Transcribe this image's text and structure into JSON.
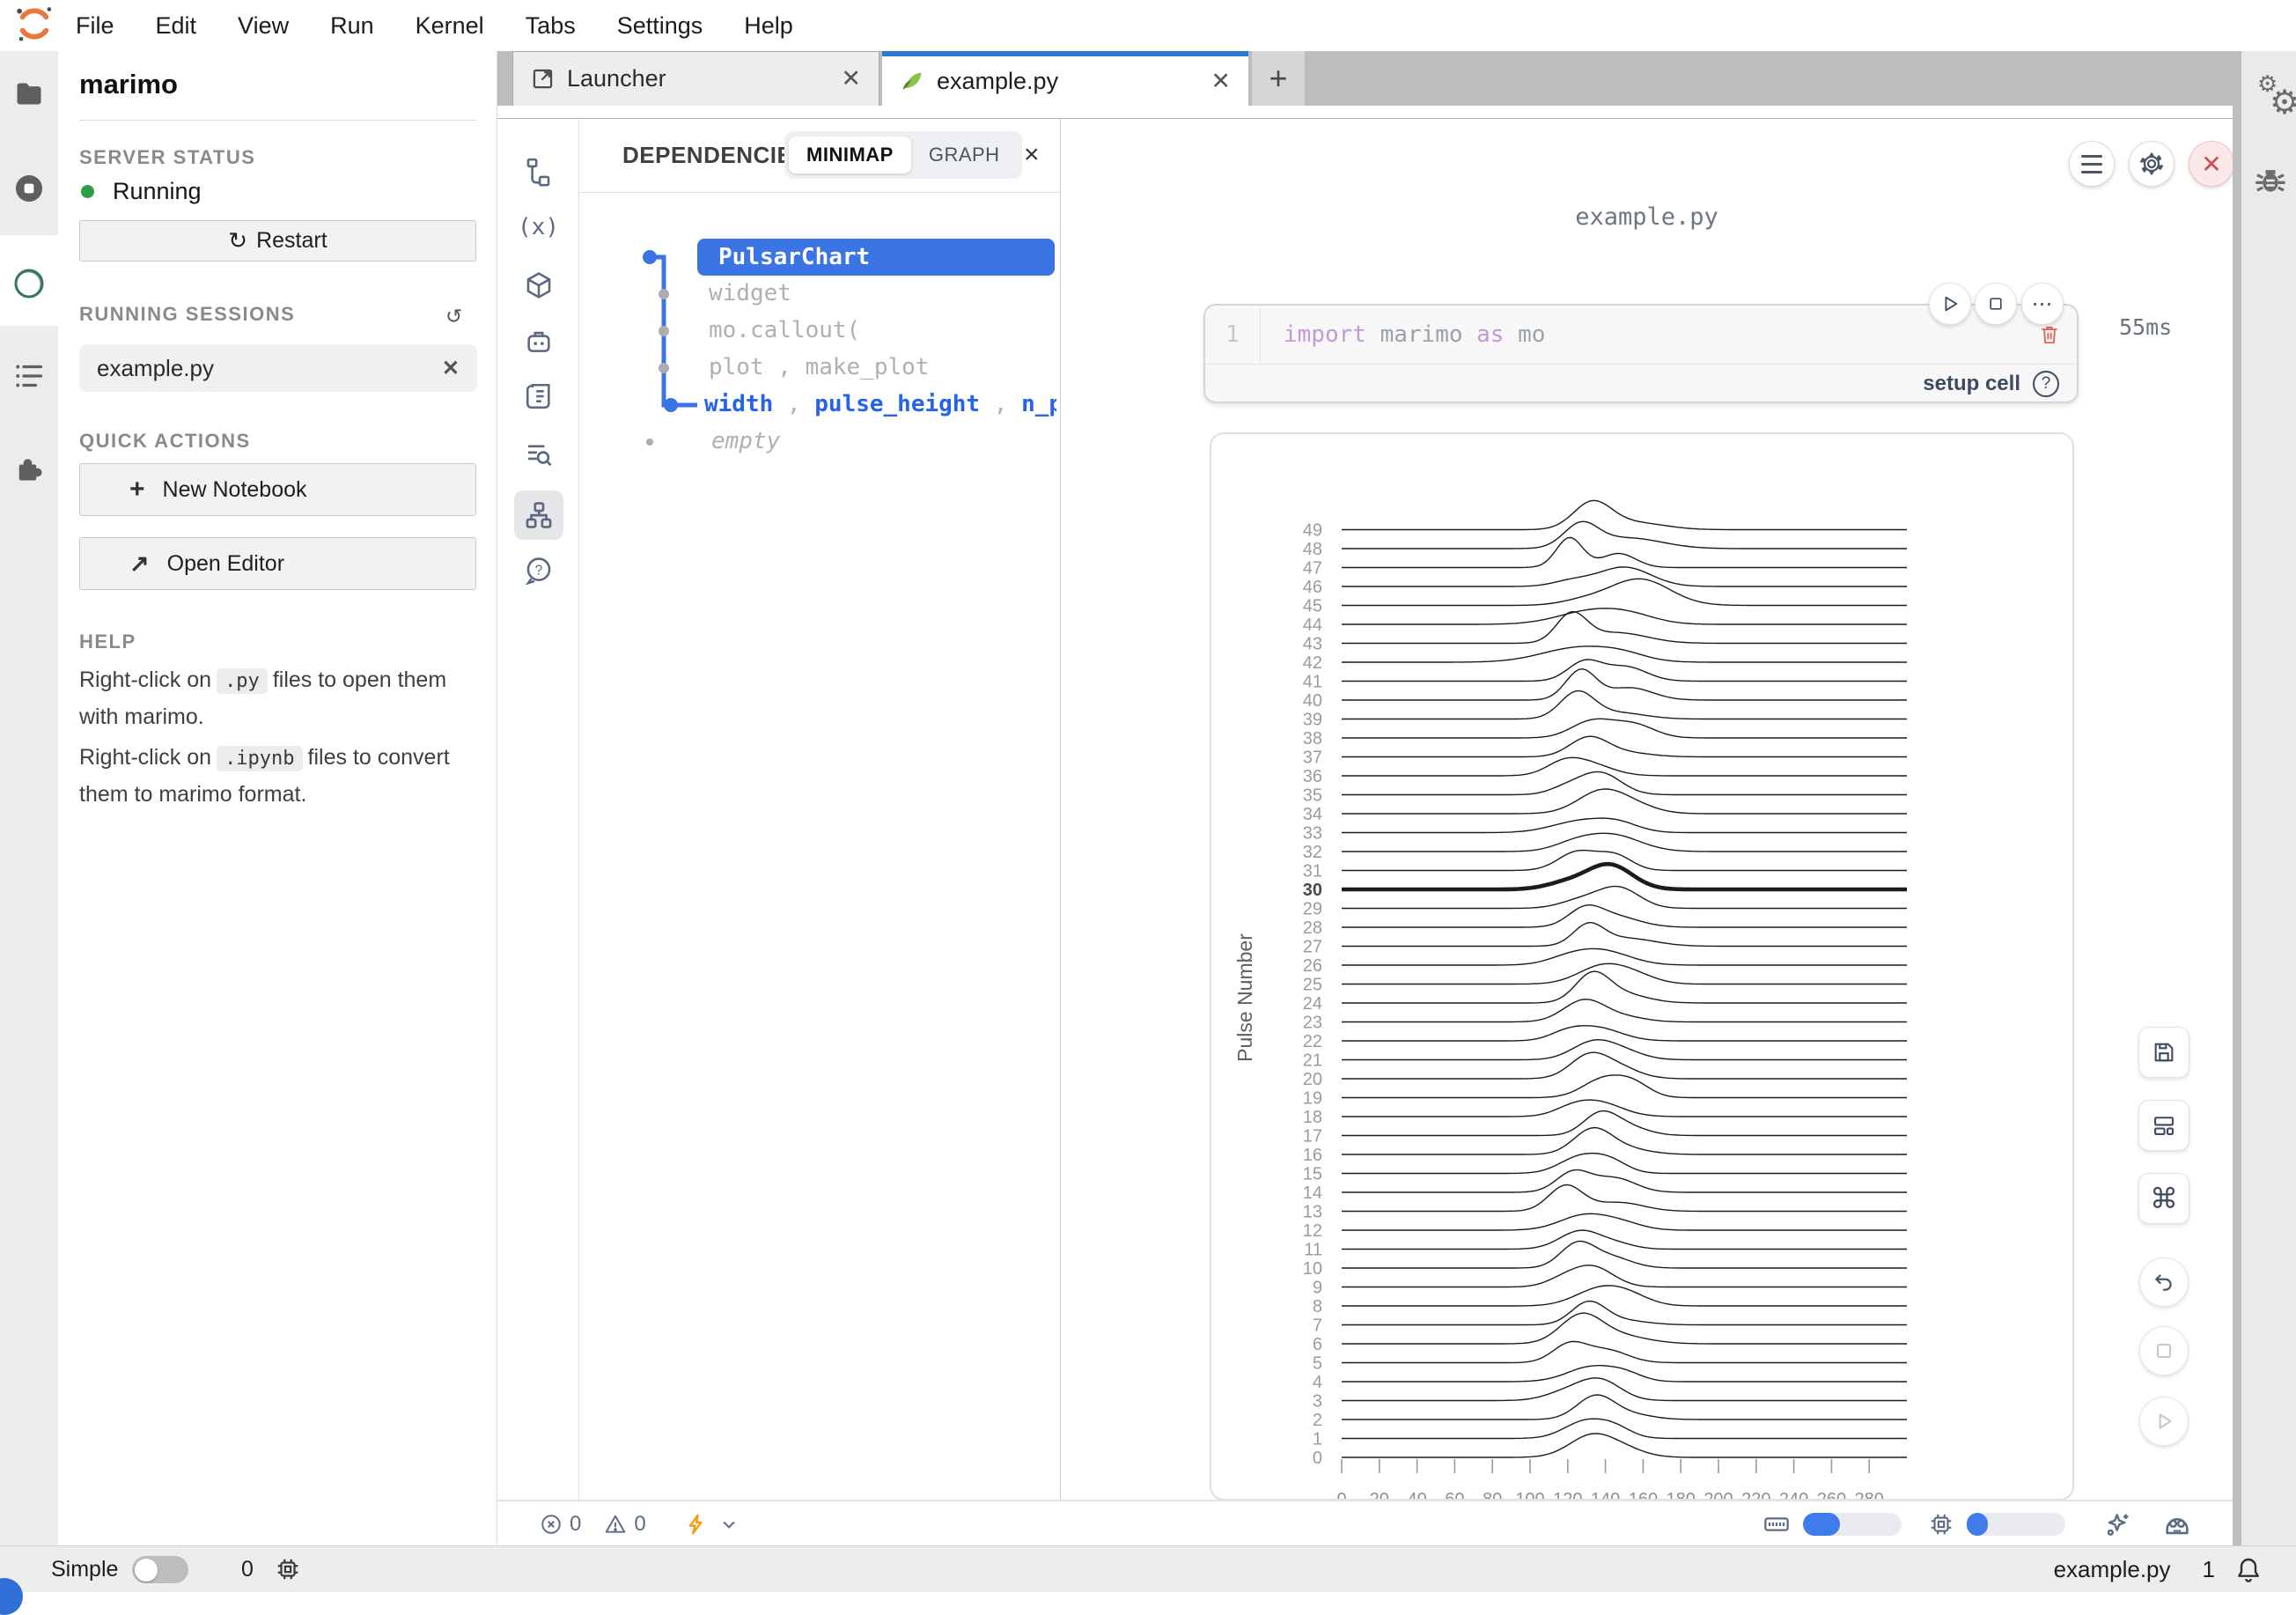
{
  "menu": {
    "items": [
      "File",
      "Edit",
      "View",
      "Run",
      "Kernel",
      "Tabs",
      "Settings",
      "Help"
    ]
  },
  "sidebar": {
    "title": "marimo",
    "server_status_label": "SERVER STATUS",
    "status_text": "Running",
    "restart_label": "Restart",
    "running_sessions_label": "RUNNING SESSIONS",
    "session_name": "example.py",
    "quick_actions_label": "QUICK ACTIONS",
    "new_notebook_label": "New Notebook",
    "open_editor_label": "Open Editor",
    "help_label": "HELP",
    "help1_pre": "Right-click on",
    "help1_code": ".py",
    "help1_post": "files to open them with marimo.",
    "help2_pre": "Right-click on",
    "help2_code": ".ipynb",
    "help2_post": "them to marimo format.",
    "help2_mid": "files to convert"
  },
  "tabbar": {
    "launcher_label": "Launcher",
    "notebook_label": "example.py",
    "new_tab_label": "+"
  },
  "dependencies": {
    "title": "DEPENDENCIES",
    "minimap_label": "MINIMAP",
    "graph_label": "GRAPH",
    "node_selected": "PulsarChart",
    "node_widget": "widget",
    "node_callout": "mo.callout(",
    "node_plot": "plot , make_plot",
    "defs": {
      "w1": "width",
      "w2": "pulse_height",
      "w3": "n_poi",
      "sep": " , "
    },
    "node_empty": "empty"
  },
  "notebook": {
    "title": "example.py",
    "cell": {
      "line_number": "1",
      "tok_import": "import",
      "tok_marimo": " marimo ",
      "tok_as": "as",
      "tok_mo": " mo",
      "runtime": "55ms",
      "setup_label": "setup cell",
      "help_glyph": "?"
    }
  },
  "dock_footer": {
    "errors": "0",
    "warnings": "0"
  },
  "status_bar": {
    "mode_label": "Simple",
    "kernel_count": "0",
    "file_name": "example.py",
    "notification_count": "1"
  },
  "colors": {
    "accent_blue": "#3a75e3",
    "tab_accent": "#2b7bd4",
    "status_green": "#2e9e44",
    "close_red": "#c94f4f",
    "bolt_orange": "#f59e0b"
  },
  "chart_data": {
    "type": "line",
    "variant": "ridgeline",
    "title": "",
    "xlabel": "",
    "ylabel": "Pulse Number",
    "x_range": [
      0,
      300
    ],
    "x_ticks": [
      0,
      20,
      40,
      60,
      80,
      100,
      120,
      140,
      160,
      180,
      200,
      220,
      240,
      260,
      280
    ],
    "y_categories_range": [
      0,
      49
    ],
    "highlight_pulse": 30,
    "grid": false,
    "legend": false,
    "peaks_format": "[amplitude_px, center_x, sigma_x]",
    "pulses": [
      {
        "n": 49,
        "peaks": [
          [
            30,
            133,
            10
          ],
          [
            8,
            155,
            16
          ]
        ]
      },
      {
        "n": 48,
        "peaks": [
          [
            26,
            127,
            9
          ],
          [
            12,
            152,
            18
          ]
        ]
      },
      {
        "n": 47,
        "peaks": [
          [
            34,
            121,
            7
          ],
          [
            16,
            147,
            9
          ]
        ]
      },
      {
        "n": 46,
        "peaks": [
          [
            22,
            150,
            14
          ],
          [
            6,
            122,
            10
          ]
        ]
      },
      {
        "n": 45,
        "peaks": [
          [
            30,
            158,
            16
          ],
          [
            5,
            128,
            12
          ]
        ]
      },
      {
        "n": 44,
        "peaks": [
          [
            15,
            133,
            18
          ],
          [
            7,
            154,
            14
          ]
        ]
      },
      {
        "n": 43,
        "peaks": [
          [
            32,
            122,
            8
          ],
          [
            12,
            146,
            16
          ]
        ]
      },
      {
        "n": 42,
        "peaks": [
          [
            17,
            127,
            20
          ],
          [
            5,
            150,
            12
          ]
        ]
      },
      {
        "n": 41,
        "peaks": [
          [
            22,
            129,
            9
          ],
          [
            16,
            151,
            11
          ]
        ]
      },
      {
        "n": 40,
        "peaks": [
          [
            34,
            127,
            8
          ],
          [
            14,
            153,
            12
          ]
        ]
      },
      {
        "n": 39,
        "peaks": [
          [
            30,
            125,
            9
          ],
          [
            7,
            147,
            14
          ]
        ]
      },
      {
        "n": 38,
        "peaks": [
          [
            19,
            133,
            11
          ],
          [
            15,
            155,
            11
          ]
        ]
      },
      {
        "n": 37,
        "peaks": [
          [
            21,
            131,
            10
          ],
          [
            5,
            149,
            14
          ]
        ]
      },
      {
        "n": 36,
        "peaks": [
          [
            15,
            129,
            13
          ],
          [
            9,
            117,
            9
          ]
        ]
      },
      {
        "n": 35,
        "peaks": [
          [
            25,
            137,
            11
          ],
          [
            7,
            119,
            9
          ]
        ]
      },
      {
        "n": 34,
        "peaks": [
          [
            27,
            139,
            13
          ],
          [
            5,
            159,
            11
          ]
        ]
      },
      {
        "n": 33,
        "peaks": [
          [
            13,
            127,
            15
          ],
          [
            9,
            147,
            11
          ]
        ]
      },
      {
        "n": 32,
        "peaks": [
          [
            19,
            143,
            15
          ],
          [
            7,
            123,
            11
          ]
        ]
      },
      {
        "n": 31,
        "peaks": [
          [
            21,
            125,
            10
          ],
          [
            17,
            145,
            9
          ]
        ]
      },
      {
        "n": 30,
        "peaks": [
          [
            28,
            142,
            12
          ],
          [
            7,
            119,
            11
          ]
        ]
      },
      {
        "n": 29,
        "peaks": [
          [
            23,
            147,
            11
          ],
          [
            9,
            127,
            11
          ]
        ]
      },
      {
        "n": 28,
        "peaks": [
          [
            19,
            129,
            9
          ],
          [
            12,
            145,
            13
          ]
        ]
      },
      {
        "n": 27,
        "peaks": [
          [
            23,
            131,
            8
          ],
          [
            9,
            151,
            15
          ]
        ]
      },
      {
        "n": 26,
        "peaks": [
          [
            17,
            137,
            15
          ],
          [
            5,
            119,
            11
          ]
        ]
      },
      {
        "n": 25,
        "peaks": [
          [
            21,
            139,
            13
          ],
          [
            7,
            157,
            11
          ]
        ]
      },
      {
        "n": 24,
        "peaks": [
          [
            31,
            133,
            9
          ],
          [
            10,
            149,
            13
          ]
        ]
      },
      {
        "n": 23,
        "peaks": [
          [
            25,
            129,
            11
          ],
          [
            5,
            151,
            11
          ]
        ]
      },
      {
        "n": 22,
        "peaks": [
          [
            15,
            135,
            13
          ],
          [
            7,
            119,
            9
          ]
        ]
      },
      {
        "n": 21,
        "peaks": [
          [
            19,
            133,
            11
          ],
          [
            9,
            149,
            11
          ]
        ]
      },
      {
        "n": 20,
        "peaks": [
          [
            25,
            131,
            10
          ],
          [
            12,
            147,
            11
          ]
        ]
      },
      {
        "n": 19,
        "peaks": [
          [
            21,
            139,
            11
          ],
          [
            14,
            155,
            9
          ]
        ]
      },
      {
        "n": 18,
        "peaks": [
          [
            17,
            135,
            13
          ],
          [
            5,
            121,
            9
          ]
        ]
      },
      {
        "n": 17,
        "peaks": [
          [
            23,
            137,
            9
          ],
          [
            10,
            151,
            11
          ]
        ]
      },
      {
        "n": 16,
        "peaks": [
          [
            27,
            133,
            10
          ],
          [
            7,
            149,
            13
          ]
        ]
      },
      {
        "n": 15,
        "peaks": [
          [
            19,
            127,
            11
          ],
          [
            12,
            143,
            9
          ]
        ]
      },
      {
        "n": 14,
        "peaks": [
          [
            23,
            123,
            9
          ],
          [
            16,
            145,
            11
          ]
        ]
      },
      {
        "n": 13,
        "peaks": [
          [
            29,
            119,
            9
          ],
          [
            10,
            147,
            13
          ]
        ]
      },
      {
        "n": 12,
        "peaks": [
          [
            17,
            129,
            13
          ],
          [
            7,
            149,
            11
          ]
        ]
      },
      {
        "n": 11,
        "peaks": [
          [
            21,
            127,
            11
          ],
          [
            5,
            147,
            9
          ]
        ]
      },
      {
        "n": 10,
        "peaks": [
          [
            27,
            125,
            9
          ],
          [
            12,
            143,
            11
          ]
        ]
      },
      {
        "n": 9,
        "peaks": [
          [
            23,
            133,
            11
          ],
          [
            7,
            117,
            9
          ]
        ]
      },
      {
        "n": 8,
        "peaks": [
          [
            19,
            137,
            13
          ],
          [
            9,
            153,
            11
          ]
        ]
      },
      {
        "n": 7,
        "peaks": [
          [
            25,
            131,
            9
          ],
          [
            5,
            149,
            13
          ]
        ]
      },
      {
        "n": 6,
        "peaks": [
          [
            31,
            127,
            11
          ],
          [
            9,
            147,
            15
          ]
        ]
      },
      {
        "n": 5,
        "peaks": [
          [
            21,
            121,
            9
          ],
          [
            14,
            141,
            11
          ]
        ]
      },
      {
        "n": 4,
        "peaks": [
          [
            17,
            133,
            13
          ],
          [
            7,
            151,
            9
          ]
        ]
      },
      {
        "n": 3,
        "peaks": [
          [
            23,
            137,
            11
          ],
          [
            9,
            119,
            11
          ]
        ]
      },
      {
        "n": 2,
        "peaks": [
          [
            27,
            135,
            10
          ],
          [
            5,
            155,
            11
          ]
        ]
      },
      {
        "n": 1,
        "peaks": [
          [
            19,
            129,
            11
          ],
          [
            11,
            145,
            9
          ]
        ]
      },
      {
        "n": 0,
        "peaks": [
          [
            25,
            133,
            12
          ],
          [
            7,
            151,
            11
          ]
        ]
      }
    ]
  }
}
